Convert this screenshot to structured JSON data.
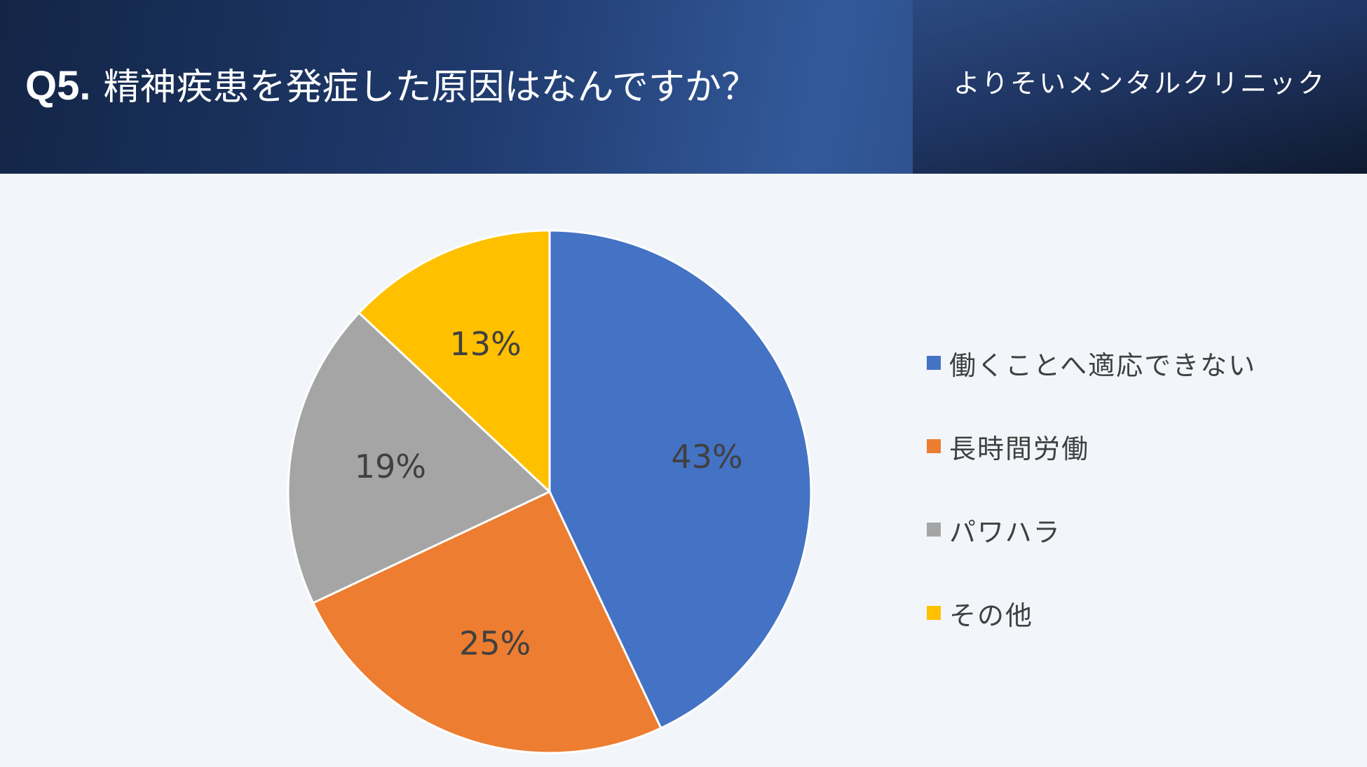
{
  "header": {
    "question_number": "Q5.",
    "question_text": "精神疾患を発症した原因はなんですか？",
    "clinic_name": "よりそいメンタルクリニック"
  },
  "chart_data": {
    "type": "pie",
    "title": "",
    "start_angle_deg": 0,
    "direction": "clockwise",
    "legend_position": "right",
    "label_color": "#404040",
    "slices": [
      {
        "name": "働くことへ適応できない",
        "value": 43,
        "label": "43%",
        "color": "#4472c4"
      },
      {
        "name": "長時間労働",
        "value": 25,
        "label": "25%",
        "color": "#ed7d31"
      },
      {
        "name": "パワハラ",
        "value": 19,
        "label": "19%",
        "color": "#a5a5a5"
      },
      {
        "name": "その他",
        "value": 13,
        "label": "13%",
        "color": "#ffc000"
      }
    ]
  }
}
